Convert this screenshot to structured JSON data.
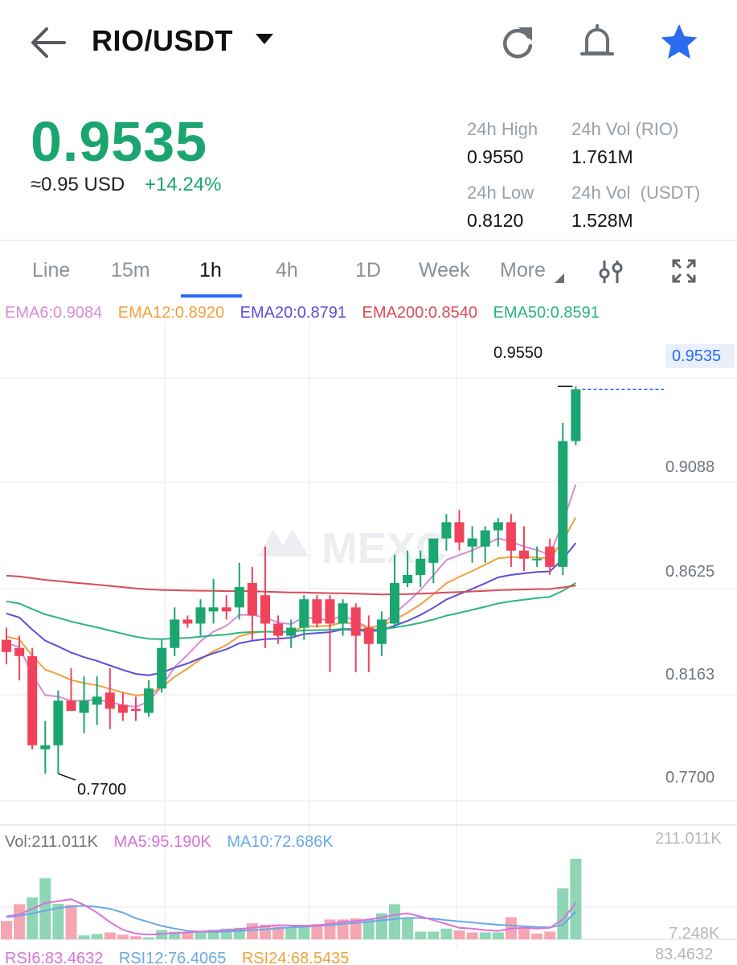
{
  "header": {
    "pair": "RIO/USDT",
    "icons": [
      "back-arrow-icon",
      "refresh-icon",
      "bell-icon",
      "star-icon"
    ],
    "favorite_color": "#2a6bf2"
  },
  "ticker": {
    "last_price": "0.9535",
    "usd_approx": "≈0.95 USD",
    "change": "+14.24%",
    "up_color": "#1ba56f",
    "down_color": "#f0435b",
    "stats": {
      "high_label": "24h High",
      "high_value": "0.9550",
      "vol_base_label": "24h Vol (RIO)",
      "vol_base_value": "1.761M",
      "low_label": "24h Low",
      "low_value": "0.8120",
      "vol_quote_label": "24h Vol  (USDT)",
      "vol_quote_value": "1.528M"
    }
  },
  "tabs": {
    "items": [
      "Line",
      "15m",
      "1h",
      "4h",
      "1D",
      "Week",
      "More"
    ],
    "active": "1h",
    "icons": [
      "indicator-settings-icon",
      "fullscreen-icon"
    ]
  },
  "indicators": {
    "ema6": "EMA6:0.9084",
    "ema12": "EMA12:0.8920",
    "ema20": "EMA20:0.8791",
    "ema200": "EMA200:0.8540",
    "ema50": "EMA50:0.8591",
    "colors": {
      "ema6": "#d88bd9",
      "ema12": "#f0a13b",
      "ema20": "#5b4fd6",
      "ema200": "#d94b55",
      "ema50": "#2bb67d"
    }
  },
  "price_axis": {
    "labels": [
      "0.9088",
      "0.8625",
      "0.8163",
      "0.7700"
    ],
    "current_tag": "0.9535",
    "high_marker": "0.9550",
    "low_marker": "0.7700"
  },
  "volume": {
    "vol": "Vol:211.011K",
    "ma5": "MA5:95.190K",
    "ma10": "MA10:72.686K",
    "axis_top": "211.011K",
    "axis_bottom": "7.248K",
    "ma5_color": "#d872d8",
    "ma10_color": "#6aa8e6"
  },
  "rsi": {
    "rsi6": "RSI6:83.4632",
    "rsi12": "RSI12:76.4065",
    "rsi24": "RSI24:68.5435",
    "axis_top": "83.4632"
  },
  "watermark": "MEXC",
  "chart_data": {
    "type": "candlestick",
    "interval": "1h",
    "ylim": [
      0.745,
      0.975
    ],
    "candles": [
      {
        "o": 0.83,
        "h": 0.836,
        "l": 0.818,
        "c": 0.824
      },
      {
        "o": 0.826,
        "h": 0.832,
        "l": 0.81,
        "c": 0.822
      },
      {
        "o": 0.822,
        "h": 0.826,
        "l": 0.776,
        "c": 0.778
      },
      {
        "o": 0.776,
        "h": 0.79,
        "l": 0.764,
        "c": 0.778
      },
      {
        "o": 0.778,
        "h": 0.805,
        "l": 0.764,
        "c": 0.8
      },
      {
        "o": 0.8,
        "h": 0.816,
        "l": 0.796,
        "c": 0.795
      },
      {
        "o": 0.794,
        "h": 0.812,
        "l": 0.784,
        "c": 0.8
      },
      {
        "o": 0.798,
        "h": 0.812,
        "l": 0.788,
        "c": 0.802
      },
      {
        "o": 0.804,
        "h": 0.816,
        "l": 0.786,
        "c": 0.796
      },
      {
        "o": 0.798,
        "h": 0.804,
        "l": 0.79,
        "c": 0.794
      },
      {
        "o": 0.796,
        "h": 0.802,
        "l": 0.79,
        "c": 0.795
      },
      {
        "o": 0.794,
        "h": 0.81,
        "l": 0.792,
        "c": 0.806
      },
      {
        "o": 0.806,
        "h": 0.83,
        "l": 0.804,
        "c": 0.826
      },
      {
        "o": 0.826,
        "h": 0.846,
        "l": 0.822,
        "c": 0.84
      },
      {
        "o": 0.84,
        "h": 0.842,
        "l": 0.836,
        "c": 0.838
      },
      {
        "o": 0.838,
        "h": 0.85,
        "l": 0.832,
        "c": 0.846
      },
      {
        "o": 0.844,
        "h": 0.86,
        "l": 0.838,
        "c": 0.846
      },
      {
        "o": 0.846,
        "h": 0.852,
        "l": 0.84,
        "c": 0.844
      },
      {
        "o": 0.846,
        "h": 0.868,
        "l": 0.84,
        "c": 0.856
      },
      {
        "o": 0.858,
        "h": 0.866,
        "l": 0.83,
        "c": 0.842
      },
      {
        "o": 0.852,
        "h": 0.876,
        "l": 0.826,
        "c": 0.838
      },
      {
        "o": 0.838,
        "h": 0.842,
        "l": 0.828,
        "c": 0.832
      },
      {
        "o": 0.832,
        "h": 0.84,
        "l": 0.826,
        "c": 0.836
      },
      {
        "o": 0.836,
        "h": 0.852,
        "l": 0.83,
        "c": 0.85
      },
      {
        "o": 0.85,
        "h": 0.852,
        "l": 0.836,
        "c": 0.838
      },
      {
        "o": 0.85,
        "h": 0.852,
        "l": 0.814,
        "c": 0.838
      },
      {
        "o": 0.838,
        "h": 0.85,
        "l": 0.832,
        "c": 0.848
      },
      {
        "o": 0.846,
        "h": 0.848,
        "l": 0.814,
        "c": 0.832
      },
      {
        "o": 0.836,
        "h": 0.842,
        "l": 0.814,
        "c": 0.828
      },
      {
        "o": 0.828,
        "h": 0.844,
        "l": 0.822,
        "c": 0.84
      },
      {
        "o": 0.838,
        "h": 0.872,
        "l": 0.836,
        "c": 0.858
      },
      {
        "o": 0.858,
        "h": 0.874,
        "l": 0.856,
        "c": 0.862
      },
      {
        "o": 0.862,
        "h": 0.874,
        "l": 0.856,
        "c": 0.87
      },
      {
        "o": 0.868,
        "h": 0.88,
        "l": 0.858,
        "c": 0.88
      },
      {
        "o": 0.88,
        "h": 0.892,
        "l": 0.874,
        "c": 0.888
      },
      {
        "o": 0.888,
        "h": 0.894,
        "l": 0.874,
        "c": 0.878
      },
      {
        "o": 0.876,
        "h": 0.886,
        "l": 0.868,
        "c": 0.88
      },
      {
        "o": 0.876,
        "h": 0.886,
        "l": 0.868,
        "c": 0.884
      },
      {
        "o": 0.884,
        "h": 0.89,
        "l": 0.876,
        "c": 0.888
      },
      {
        "o": 0.888,
        "h": 0.892,
        "l": 0.866,
        "c": 0.874
      },
      {
        "o": 0.874,
        "h": 0.886,
        "l": 0.864,
        "c": 0.87
      },
      {
        "o": 0.87,
        "h": 0.876,
        "l": 0.866,
        "c": 0.87
      },
      {
        "o": 0.876,
        "h": 0.88,
        "l": 0.862,
        "c": 0.866
      },
      {
        "o": 0.866,
        "h": 0.937,
        "l": 0.862,
        "c": 0.928
      },
      {
        "o": 0.928,
        "h": 0.955,
        "l": 0.926,
        "c": 0.9535
      }
    ],
    "volume_bars": [
      {
        "v": 48,
        "up": false
      },
      {
        "v": 92,
        "up": false
      },
      {
        "v": 110,
        "up": true
      },
      {
        "v": 160,
        "up": true
      },
      {
        "v": 93,
        "up": true
      },
      {
        "v": 90,
        "up": false
      },
      {
        "v": 10,
        "up": true
      },
      {
        "v": 14,
        "up": true
      },
      {
        "v": 18,
        "up": false
      },
      {
        "v": 12,
        "up": false
      },
      {
        "v": 8,
        "up": false
      },
      {
        "v": 5,
        "up": true
      },
      {
        "v": 24,
        "up": true
      },
      {
        "v": 20,
        "up": true
      },
      {
        "v": 18,
        "up": false
      },
      {
        "v": 22,
        "up": true
      },
      {
        "v": 25,
        "up": true
      },
      {
        "v": 28,
        "up": true
      },
      {
        "v": 30,
        "up": true
      },
      {
        "v": 42,
        "up": false
      },
      {
        "v": 38,
        "up": false
      },
      {
        "v": 33,
        "up": false
      },
      {
        "v": 30,
        "up": true
      },
      {
        "v": 38,
        "up": true
      },
      {
        "v": 40,
        "up": false
      },
      {
        "v": 52,
        "up": false
      },
      {
        "v": 52,
        "up": false
      },
      {
        "v": 55,
        "up": false
      },
      {
        "v": 52,
        "up": true
      },
      {
        "v": 68,
        "up": true
      },
      {
        "v": 92,
        "up": true
      },
      {
        "v": 56,
        "up": true
      },
      {
        "v": 20,
        "up": true
      },
      {
        "v": 20,
        "up": true
      },
      {
        "v": 28,
        "up": true
      },
      {
        "v": 23,
        "up": false
      },
      {
        "v": 18,
        "up": false
      },
      {
        "v": 18,
        "up": true
      },
      {
        "v": 18,
        "up": true
      },
      {
        "v": 58,
        "up": false
      },
      {
        "v": 28,
        "up": false
      },
      {
        "v": 15,
        "up": false
      },
      {
        "v": 20,
        "up": false
      },
      {
        "v": 134,
        "up": true
      },
      {
        "v": 211,
        "up": true
      }
    ],
    "volume_ma5": [
      60,
      65,
      80,
      95,
      100,
      105,
      90,
      70,
      45,
      25,
      15,
      12,
      14,
      16,
      18,
      20,
      22,
      24,
      27,
      30,
      34,
      37,
      36,
      35,
      36,
      40,
      46,
      48,
      52,
      57,
      64,
      68,
      60,
      50,
      40,
      30,
      28,
      24,
      22,
      28,
      30,
      28,
      30,
      52,
      95.19
    ],
    "volume_ma10": [
      58,
      62,
      68,
      75,
      82,
      86,
      88,
      85,
      80,
      70,
      55,
      45,
      35,
      28,
      22,
      20,
      19,
      20,
      22,
      24,
      26,
      29,
      31,
      33,
      35,
      37,
      40,
      43,
      46,
      50,
      53,
      56,
      56,
      54,
      50,
      47,
      44,
      41,
      38,
      36,
      34,
      32,
      31,
      38,
      72.686
    ]
  }
}
